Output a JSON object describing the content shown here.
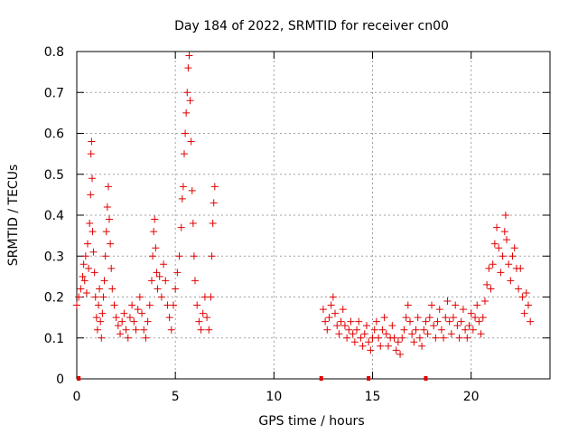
{
  "chart_data": {
    "type": "scatter",
    "title": "Day 184 of 2022, SRMTID for receiver cn00",
    "xlabel": "GPS time / hours",
    "ylabel": "SRMTID / TECUs",
    "xlim": [
      0,
      24
    ],
    "ylim": [
      0,
      0.8
    ],
    "x_ticks": [
      0,
      5,
      10,
      15,
      20
    ],
    "y_ticks": [
      0,
      0.1,
      0.2,
      0.3,
      0.4,
      0.5,
      0.6,
      0.7,
      0.8
    ],
    "x_tick_labels": [
      "0",
      "5",
      "10",
      "15",
      "20"
    ],
    "y_tick_labels": [
      "0",
      "0.1",
      "0.2",
      "0.3",
      "0.4",
      "0.5",
      "0.6",
      "0.7",
      "0.8"
    ],
    "grid": true,
    "marker": "plus",
    "color": "#e00000",
    "zero_markers_x": [
      0.1,
      12.4,
      14.8,
      17.7
    ],
    "series": [
      {
        "name": "SRMTID",
        "points": [
          [
            0.0,
            0.18
          ],
          [
            0.1,
            0.2
          ],
          [
            0.2,
            0.22
          ],
          [
            0.3,
            0.25
          ],
          [
            0.35,
            0.28
          ],
          [
            0.4,
            0.24
          ],
          [
            0.45,
            0.3
          ],
          [
            0.5,
            0.21
          ],
          [
            0.55,
            0.33
          ],
          [
            0.6,
            0.27
          ],
          [
            0.65,
            0.38
          ],
          [
            0.7,
            0.45
          ],
          [
            0.72,
            0.55
          ],
          [
            0.75,
            0.58
          ],
          [
            0.78,
            0.49
          ],
          [
            0.8,
            0.36
          ],
          [
            0.85,
            0.31
          ],
          [
            0.9,
            0.26
          ],
          [
            0.95,
            0.2
          ],
          [
            1.0,
            0.15
          ],
          [
            1.05,
            0.12
          ],
          [
            1.1,
            0.18
          ],
          [
            1.15,
            0.22
          ],
          [
            1.2,
            0.14
          ],
          [
            1.25,
            0.1
          ],
          [
            1.3,
            0.16
          ],
          [
            1.35,
            0.2
          ],
          [
            1.4,
            0.24
          ],
          [
            1.45,
            0.3
          ],
          [
            1.5,
            0.36
          ],
          [
            1.55,
            0.42
          ],
          [
            1.6,
            0.47
          ],
          [
            1.65,
            0.39
          ],
          [
            1.7,
            0.33
          ],
          [
            1.75,
            0.27
          ],
          [
            1.8,
            0.22
          ],
          [
            1.9,
            0.18
          ],
          [
            2.0,
            0.15
          ],
          [
            2.1,
            0.13
          ],
          [
            2.2,
            0.11
          ],
          [
            2.3,
            0.14
          ],
          [
            2.4,
            0.16
          ],
          [
            2.5,
            0.12
          ],
          [
            2.6,
            0.1
          ],
          [
            2.7,
            0.15
          ],
          [
            2.8,
            0.18
          ],
          [
            2.9,
            0.14
          ],
          [
            3.0,
            0.12
          ],
          [
            3.1,
            0.17
          ],
          [
            3.2,
            0.2
          ],
          [
            3.3,
            0.16
          ],
          [
            3.4,
            0.12
          ],
          [
            3.5,
            0.1
          ],
          [
            3.6,
            0.14
          ],
          [
            3.7,
            0.18
          ],
          [
            3.8,
            0.24
          ],
          [
            3.85,
            0.3
          ],
          [
            3.9,
            0.36
          ],
          [
            3.95,
            0.39
          ],
          [
            4.0,
            0.32
          ],
          [
            4.05,
            0.26
          ],
          [
            4.1,
            0.22
          ],
          [
            4.2,
            0.25
          ],
          [
            4.3,
            0.2
          ],
          [
            4.4,
            0.28
          ],
          [
            4.5,
            0.24
          ],
          [
            4.6,
            0.18
          ],
          [
            4.7,
            0.15
          ],
          [
            4.8,
            0.12
          ],
          [
            4.9,
            0.18
          ],
          [
            5.0,
            0.22
          ],
          [
            5.1,
            0.26
          ],
          [
            5.2,
            0.3
          ],
          [
            5.3,
            0.37
          ],
          [
            5.35,
            0.44
          ],
          [
            5.4,
            0.47
          ],
          [
            5.45,
            0.55
          ],
          [
            5.5,
            0.6
          ],
          [
            5.55,
            0.65
          ],
          [
            5.6,
            0.7
          ],
          [
            5.65,
            0.76
          ],
          [
            5.7,
            0.79
          ],
          [
            5.75,
            0.68
          ],
          [
            5.8,
            0.58
          ],
          [
            5.85,
            0.46
          ],
          [
            5.9,
            0.38
          ],
          [
            5.95,
            0.3
          ],
          [
            6.0,
            0.24
          ],
          [
            6.1,
            0.18
          ],
          [
            6.2,
            0.14
          ],
          [
            6.3,
            0.12
          ],
          [
            6.4,
            0.16
          ],
          [
            6.5,
            0.2
          ],
          [
            6.6,
            0.15
          ],
          [
            6.7,
            0.12
          ],
          [
            6.8,
            0.2
          ],
          [
            6.85,
            0.3
          ],
          [
            6.9,
            0.38
          ],
          [
            6.95,
            0.43
          ],
          [
            7.0,
            0.47
          ],
          [
            12.5,
            0.17
          ],
          [
            12.6,
            0.14
          ],
          [
            12.7,
            0.12
          ],
          [
            12.8,
            0.15
          ],
          [
            12.9,
            0.18
          ],
          [
            13.0,
            0.2
          ],
          [
            13.1,
            0.16
          ],
          [
            13.2,
            0.13
          ],
          [
            13.3,
            0.11
          ],
          [
            13.4,
            0.14
          ],
          [
            13.5,
            0.17
          ],
          [
            13.6,
            0.13
          ],
          [
            13.7,
            0.1
          ],
          [
            13.8,
            0.12
          ],
          [
            13.9,
            0.14
          ],
          [
            14.0,
            0.11
          ],
          [
            14.1,
            0.09
          ],
          [
            14.2,
            0.12
          ],
          [
            14.3,
            0.14
          ],
          [
            14.4,
            0.1
          ],
          [
            14.5,
            0.08
          ],
          [
            14.6,
            0.11
          ],
          [
            14.7,
            0.13
          ],
          [
            14.8,
            0.09
          ],
          [
            14.9,
            0.07
          ],
          [
            15.0,
            0.1
          ],
          [
            15.1,
            0.12
          ],
          [
            15.2,
            0.14
          ],
          [
            15.3,
            0.1
          ],
          [
            15.4,
            0.08
          ],
          [
            15.5,
            0.12
          ],
          [
            15.6,
            0.15
          ],
          [
            15.7,
            0.11
          ],
          [
            15.8,
            0.08
          ],
          [
            15.9,
            0.1
          ],
          [
            16.0,
            0.13
          ],
          [
            16.1,
            0.1
          ],
          [
            16.2,
            0.07
          ],
          [
            16.3,
            0.09
          ],
          [
            16.4,
            0.06
          ],
          [
            16.5,
            0.1
          ],
          [
            16.6,
            0.12
          ],
          [
            16.7,
            0.15
          ],
          [
            16.8,
            0.18
          ],
          [
            16.9,
            0.14
          ],
          [
            17.0,
            0.11
          ],
          [
            17.1,
            0.09
          ],
          [
            17.2,
            0.12
          ],
          [
            17.3,
            0.15
          ],
          [
            17.4,
            0.1
          ],
          [
            17.5,
            0.08
          ],
          [
            17.6,
            0.12
          ],
          [
            17.7,
            0.14
          ],
          [
            17.8,
            0.11
          ],
          [
            17.9,
            0.15
          ],
          [
            18.0,
            0.18
          ],
          [
            18.1,
            0.13
          ],
          [
            18.2,
            0.1
          ],
          [
            18.3,
            0.14
          ],
          [
            18.4,
            0.17
          ],
          [
            18.5,
            0.12
          ],
          [
            18.6,
            0.1
          ],
          [
            18.7,
            0.15
          ],
          [
            18.8,
            0.19
          ],
          [
            18.9,
            0.14
          ],
          [
            19.0,
            0.11
          ],
          [
            19.1,
            0.15
          ],
          [
            19.2,
            0.18
          ],
          [
            19.3,
            0.13
          ],
          [
            19.4,
            0.1
          ],
          [
            19.5,
            0.14
          ],
          [
            19.6,
            0.17
          ],
          [
            19.7,
            0.12
          ],
          [
            19.8,
            0.1
          ],
          [
            19.9,
            0.13
          ],
          [
            20.0,
            0.16
          ],
          [
            20.1,
            0.12
          ],
          [
            20.2,
            0.15
          ],
          [
            20.3,
            0.18
          ],
          [
            20.4,
            0.14
          ],
          [
            20.5,
            0.11
          ],
          [
            20.6,
            0.15
          ],
          [
            20.7,
            0.19
          ],
          [
            20.8,
            0.23
          ],
          [
            20.9,
            0.27
          ],
          [
            21.0,
            0.22
          ],
          [
            21.1,
            0.28
          ],
          [
            21.2,
            0.33
          ],
          [
            21.3,
            0.37
          ],
          [
            21.4,
            0.32
          ],
          [
            21.5,
            0.26
          ],
          [
            21.6,
            0.3
          ],
          [
            21.7,
            0.36
          ],
          [
            21.75,
            0.4
          ],
          [
            21.8,
            0.34
          ],
          [
            21.9,
            0.28
          ],
          [
            22.0,
            0.24
          ],
          [
            22.1,
            0.3
          ],
          [
            22.2,
            0.32
          ],
          [
            22.3,
            0.27
          ],
          [
            22.4,
            0.22
          ],
          [
            22.5,
            0.27
          ],
          [
            22.6,
            0.2
          ],
          [
            22.7,
            0.16
          ],
          [
            22.8,
            0.21
          ],
          [
            22.9,
            0.18
          ],
          [
            23.0,
            0.14
          ]
        ]
      }
    ]
  }
}
